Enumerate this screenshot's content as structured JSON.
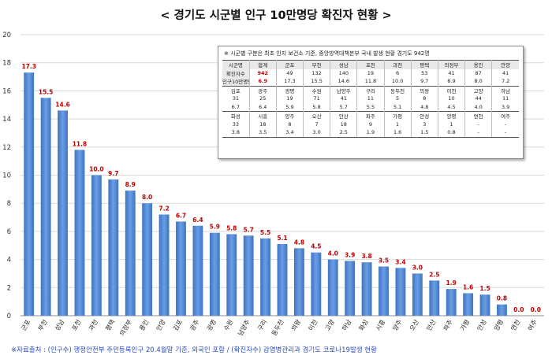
{
  "title": "< 경기도 시군별 인구 10만명당 확진자 현황 >",
  "source": "※자료출처 : (인구수) 행정안전부 주민등록인구 20.4월말 기준, 외국인 포함 / (확진자수) 감염병관리과 경기도 코로나19발생 현황",
  "inset": {
    "note": "※ 시군별 구분은 최초 인지 보건소 기준, 중앙방역대책본부 국내 발생 현황 경기도 942명",
    "rows": [
      [
        "시군명",
        "합계",
        "군포",
        "부천",
        "성남",
        "포천",
        "과천",
        "평택",
        "의정부",
        "용인",
        "안양"
      ],
      [
        "확진자수",
        "942",
        "49",
        "132",
        "140",
        "19",
        "6",
        "53",
        "41",
        "87",
        "41"
      ],
      [
        "인구10만명당",
        "6.9",
        "17.3",
        "15.5",
        "14.6",
        "11.8",
        "10.0",
        "9.7",
        "8.9",
        "8.0",
        "7.2"
      ],
      [
        "김포",
        "광주",
        "광명",
        "수원",
        "남양주",
        "구리",
        "동두천",
        "의왕",
        "이천",
        "고양",
        "하남"
      ],
      [
        "31",
        "25",
        "19",
        "71",
        "41",
        "11",
        "5",
        "8",
        "10",
        "44",
        "11"
      ],
      [
        "6.7",
        "6.4",
        "5.9",
        "5.8",
        "5.7",
        "5.5",
        "5.1",
        "4.8",
        "4.5",
        "4.0",
        "3.9"
      ],
      [
        "화성",
        "시흥",
        "양주",
        "오산",
        "안산",
        "파주",
        "가평",
        "안성",
        "양평",
        "연천",
        "여주"
      ],
      [
        "33",
        "18",
        "8",
        "7",
        "18",
        "9",
        "1",
        "3",
        "1",
        "-",
        "-"
      ],
      [
        "3.8",
        "3.5",
        "3.4",
        "3.0",
        "2.5",
        "1.9",
        "1.6",
        "1.5",
        "0.8",
        "-",
        "-"
      ]
    ]
  },
  "chart_data": {
    "type": "bar",
    "title": "< 경기도 시군별 인구 10만명당 확진자 현황 >",
    "categories": [
      "군포",
      "부천",
      "성남",
      "포천",
      "과천",
      "평택",
      "의정부",
      "용인",
      "안양",
      "김포",
      "광주",
      "광명",
      "수원",
      "남양주",
      "구리",
      "동두천",
      "의왕",
      "이천",
      "고양",
      "하남",
      "화성",
      "시흥",
      "양주",
      "오산",
      "안산",
      "파주",
      "가평",
      "안성",
      "양평",
      "연천",
      "여주"
    ],
    "values": [
      17.3,
      15.5,
      14.6,
      11.8,
      10.0,
      9.7,
      8.9,
      8.0,
      7.2,
      6.7,
      6.4,
      5.9,
      5.8,
      5.7,
      5.5,
      5.1,
      4.8,
      4.5,
      4.0,
      3.9,
      3.8,
      3.5,
      3.4,
      3.0,
      2.5,
      1.9,
      1.6,
      1.5,
      0.8,
      0.0,
      0.0
    ],
    "data_labels": [
      "17.3",
      "15.5",
      "14.6",
      "11.8",
      "10.0",
      "9.7",
      "8.9",
      "8.0",
      "7.2",
      "6.7",
      "6.4",
      "5.9",
      "5.8",
      "5.7",
      "5.5",
      "5.1",
      "4.8",
      "4.5",
      "4.0",
      "3.9",
      "3.8",
      "3.5",
      "3.4",
      "3.0",
      "2.5",
      "1.9",
      "1.6",
      "1.5",
      "0.8",
      "0.0",
      "0.0"
    ],
    "ylim": [
      0,
      20
    ],
    "yticks": [
      0,
      2,
      4,
      6,
      8,
      10,
      12,
      14,
      16,
      18,
      20
    ],
    "grid": true,
    "xlabel": "",
    "ylabel": "",
    "bar_color": "#5b8fd6",
    "label_color": "#c00000"
  }
}
